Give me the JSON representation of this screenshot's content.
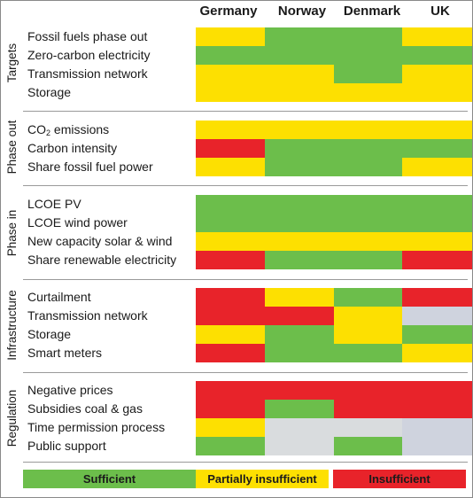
{
  "columns": [
    "Germany",
    "Norway",
    "Denmark",
    "UK"
  ],
  "groups": [
    {
      "label": "Targets",
      "rows": [
        {
          "label": "Fossil fuels phase out",
          "cells": [
            "yellow",
            "green",
            "green",
            "yellow"
          ]
        },
        {
          "label": "Zero-carbon electricity",
          "cells": [
            "green",
            "green",
            "green",
            "green"
          ]
        },
        {
          "label": "Transmission network",
          "cells": [
            "yellow",
            "yellow",
            "green",
            "yellow"
          ]
        },
        {
          "label": "Storage",
          "cells": [
            "yellow",
            "yellow",
            "yellow",
            "yellow"
          ]
        }
      ]
    },
    {
      "label": "Phase out",
      "rows": [
        {
          "label_main": "CO",
          "label_sub": "2",
          "label_tail": " emissions",
          "cells": [
            "yellow",
            "yellow",
            "yellow",
            "yellow"
          ]
        },
        {
          "label": "Carbon intensity",
          "cells": [
            "red",
            "green",
            "green",
            "green"
          ]
        },
        {
          "label": "Share fossil fuel power",
          "cells": [
            "yellow",
            "green",
            "green",
            "yellow"
          ]
        }
      ]
    },
    {
      "label": "Phase in",
      "rows": [
        {
          "label": "LCOE PV",
          "cells": [
            "green",
            "green",
            "green",
            "green"
          ]
        },
        {
          "label": "LCOE wind power",
          "cells": [
            "green",
            "green",
            "green",
            "green"
          ]
        },
        {
          "label": "New capacity solar & wind",
          "cells": [
            "yellow",
            "yellow",
            "yellow",
            "yellow"
          ]
        },
        {
          "label": "Share renewable electricity",
          "cells": [
            "red",
            "green",
            "green",
            "red"
          ]
        }
      ]
    },
    {
      "label": "Infrastructure",
      "rows": [
        {
          "label": "Curtailment",
          "cells": [
            "red",
            "yellow",
            "green",
            "red"
          ]
        },
        {
          "label": "Transmission network",
          "cells": [
            "red",
            "red",
            "yellow",
            "light"
          ]
        },
        {
          "label": "Storage",
          "cells": [
            "yellow",
            "green",
            "yellow",
            "green"
          ]
        },
        {
          "label": "Smart meters",
          "cells": [
            "red",
            "green",
            "green",
            "yellow"
          ]
        }
      ]
    },
    {
      "label": "Regulation",
      "rows": [
        {
          "label": "Negative prices",
          "cells": [
            "red",
            "red",
            "red",
            "red"
          ]
        },
        {
          "label": "Subsidies coal & gas",
          "cells": [
            "red",
            "green",
            "red",
            "red"
          ]
        },
        {
          "label": "Time permission process",
          "cells": [
            "yellow",
            "gray",
            "gray",
            "light"
          ]
        },
        {
          "label": "Public support",
          "cells": [
            "green",
            "gray",
            "green",
            "light"
          ]
        }
      ]
    }
  ],
  "legend": [
    {
      "label": "Sufficient",
      "color": "green"
    },
    {
      "label": "Partially insufficient",
      "color": "yellow"
    },
    {
      "label": "Insufficient",
      "color": "red"
    }
  ],
  "colors": {
    "green": "#6cbe4b",
    "yellow": "#fde001",
    "red": "#e8232a",
    "gray": "#d9dcde",
    "light": "#cfd3de"
  }
}
